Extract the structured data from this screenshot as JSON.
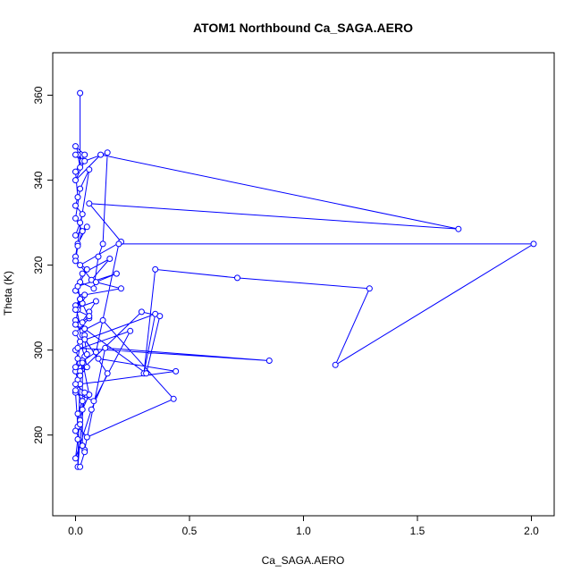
{
  "chart_data": {
    "type": "line",
    "title": "ATOM1 Northbound Ca_SAGA.AERO",
    "xlabel": "Ca_SAGA.AERO",
    "ylabel": "Theta (K)",
    "xlim": [
      -0.1,
      2.1
    ],
    "ylim": [
      261,
      370
    ],
    "xticks": [
      0,
      0.5,
      1,
      1.5,
      2
    ],
    "xtick_labels": [
      "0.0",
      "0.5",
      "1.0",
      "1.5",
      "2.0"
    ],
    "yticks": [
      280,
      300,
      320,
      340,
      360
    ],
    "ytick_labels": [
      "280",
      "300",
      "320",
      "340",
      "360"
    ],
    "grid": false,
    "series_color": "#0000ff",
    "marker": "open-circle",
    "series": [
      {
        "x": [
          0.02,
          0.02,
          0.01,
          0.0,
          0.03,
          0.0,
          0.04,
          0.0,
          0.01,
          0.0,
          0.03,
          0.02,
          0.0,
          0.05,
          0.01,
          0.0,
          0.06,
          0.02,
          0.0,
          0.03,
          0.01,
          0.0,
          0.05,
          0.02,
          0.08,
          0.1,
          0.12,
          0.14,
          0.04,
          0.0,
          0.11,
          1.68,
          0.06,
          0.2,
          0.02,
          0.07,
          0.15,
          0.03,
          0.0,
          0.03,
          0.01,
          0.09,
          0.06,
          0.02,
          0.0,
          0.04,
          0.03,
          0.12,
          0.43,
          0.05,
          0.01,
          0.0,
          0.08,
          0.24,
          0.0,
          0.02,
          0.09,
          0.19,
          2.01,
          1.14,
          1.29,
          0.71,
          0.35,
          0.3,
          0.35,
          0.02,
          0.04,
          0.05,
          0.02,
          0.01,
          0.0,
          0.03,
          0.06,
          0.03,
          0.02,
          0.01,
          0.0,
          0.07,
          0.14,
          0.03,
          0.0,
          0.02,
          0.01,
          0.0,
          0.04,
          0.02,
          0.01,
          0.0,
          0.05,
          0.04,
          0.1,
          0.44,
          0.02,
          0.0,
          0.03,
          0.01,
          0.02,
          0.0,
          0.04,
          0.13,
          0.85,
          0.01,
          0.02,
          0.0,
          0.06,
          0.03,
          0.04,
          0.2,
          0.09,
          0.18,
          0.01,
          0.02,
          0.0,
          0.06,
          0.03,
          0.04,
          0.31,
          0.37,
          0.29,
          0.02,
          0.01,
          0.04,
          0.0,
          0.02,
          0.03,
          0.03,
          0.04,
          0.02
        ],
        "y": [
          360.5,
          343.0,
          346.0,
          346.0,
          344.5,
          348.0,
          346.0,
          342.0,
          336.0,
          334.0,
          332.0,
          330.0,
          327.0,
          329.0,
          325.0,
          322.0,
          342.5,
          338.0,
          331.0,
          328.0,
          324.5,
          321.0,
          319.0,
          316.0,
          314.5,
          322.0,
          325.0,
          346.5,
          344.5,
          340.0,
          346.0,
          328.5,
          334.5,
          325.5,
          320.0,
          316.5,
          321.5,
          318.0,
          314.0,
          312.5,
          310.0,
          311.5,
          309.0,
          306.0,
          307.0,
          305.0,
          304.5,
          307.0,
          288.5,
          279.5,
          282.0,
          290.0,
          288.0,
          304.5,
          300.0,
          297.0,
          299.5,
          325.0,
          325.0,
          296.5,
          314.5,
          317.0,
          319.0,
          294.5,
          308.5,
          302.0,
          298.5,
          296.0,
          294.0,
          293.0,
          295.0,
          297.5,
          289.5,
          286.0,
          283.5,
          279.0,
          274.5,
          286.0,
          294.5,
          303.5,
          310.5,
          312.0,
          309.5,
          306.0,
          303.5,
          301.0,
          298.0,
          296.0,
          299.0,
          302.5,
          298.0,
          295.0,
          292.0,
          290.5,
          288.0,
          285.0,
          282.5,
          281.0,
          276.5,
          300.5,
          297.5,
          300.5,
          302.0,
          304.0,
          307.5,
          311.0,
          313.0,
          314.5,
          316.0,
          318.0,
          315.0,
          312.0,
          309.5,
          308.0,
          306.5,
          305.0,
          294.5,
          308.0,
          309.0,
          295.0,
          272.5,
          290.0,
          292.0,
          294.0,
          297.0,
          277.5,
          276.0,
          272.5
        ]
      }
    ]
  }
}
